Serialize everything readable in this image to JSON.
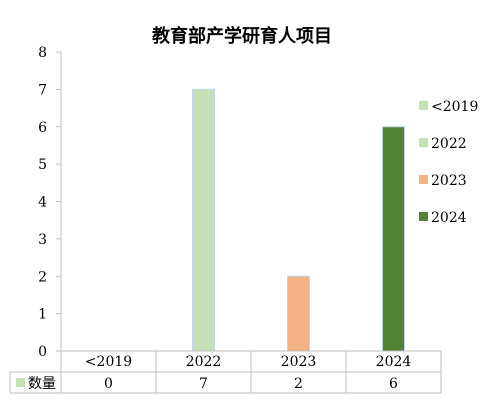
{
  "chart_data": {
    "type": "bar",
    "title": "教育部产学研育人项目",
    "categories": [
      "<2019",
      "2022",
      "2023",
      "2024"
    ],
    "series": [
      {
        "name": "数量",
        "values": [
          0,
          7,
          2,
          6
        ]
      }
    ],
    "bar_colors": [
      "#c5e0b4",
      "#c5e0b4",
      "#f4b183",
      "#548235"
    ],
    "bar_stroke": "#bdd7ee",
    "ylim": [
      0,
      8
    ],
    "yticks": [
      "0",
      "1",
      "2",
      "3",
      "4",
      "5",
      "6",
      "7",
      "8"
    ],
    "grid": false,
    "legend": {
      "position": "right",
      "entries": [
        {
          "label": "<2019",
          "color": "#c5e0b4"
        },
        {
          "label": "2022",
          "color": "#c5e0b4"
        },
        {
          "label": "2023",
          "color": "#f4b183"
        },
        {
          "label": "2024",
          "color": "#548235"
        }
      ]
    },
    "data_table": {
      "row_label": "数量",
      "row_color": "#c5e0b4",
      "values": [
        "0",
        "7",
        "2",
        "6"
      ]
    }
  }
}
